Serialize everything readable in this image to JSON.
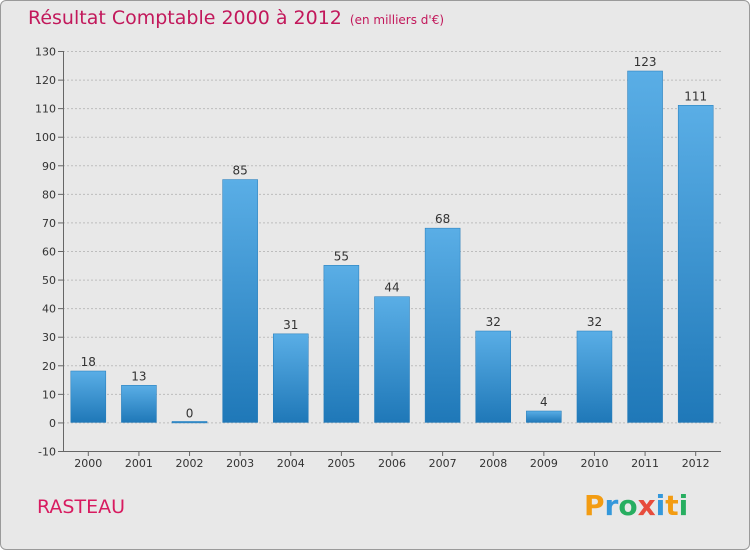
{
  "chart_data": {
    "type": "bar",
    "title": "Résultat Comptable 2000 à 2012",
    "subtitle": "(en milliers d'€)",
    "categories": [
      "2000",
      "2001",
      "2002",
      "2003",
      "2004",
      "2005",
      "2006",
      "2007",
      "2008",
      "2009",
      "2010",
      "2011",
      "2012"
    ],
    "values": [
      18,
      13,
      0,
      85,
      31,
      55,
      44,
      68,
      32,
      4,
      32,
      123,
      111
    ],
    "data_labels": [
      "18",
      "13",
      "0",
      "85",
      "31",
      "55",
      "44",
      "68",
      "32",
      "4",
      "32",
      "123",
      "111"
    ],
    "ylim": [
      -10,
      130
    ],
    "yticks": [
      -10,
      0,
      10,
      20,
      30,
      40,
      50,
      60,
      70,
      80,
      90,
      100,
      110,
      120,
      130
    ],
    "ytick_labels": [
      "-10",
      "0",
      "10",
      "20",
      "30",
      "40",
      "50",
      "60",
      "70",
      "80",
      "90",
      "100",
      "110",
      "120",
      "130"
    ],
    "grid": true,
    "xlabel": "",
    "ylabel": ""
  },
  "commune": "RASTEAU",
  "logo": {
    "letters": [
      "P",
      "r",
      "o",
      "x",
      "i",
      "t",
      "i"
    ]
  },
  "colors": {
    "bar_light": "#5aaee6",
    "bar_dark": "#1f78b8",
    "title": "#c2185b",
    "background": "#e8e8e8",
    "grid": "#bdbdbd",
    "logo": [
      "#f39c12",
      "#3498db",
      "#27ae60",
      "#e74c3c",
      "#3498db",
      "#f39c12",
      "#27ae60"
    ]
  }
}
